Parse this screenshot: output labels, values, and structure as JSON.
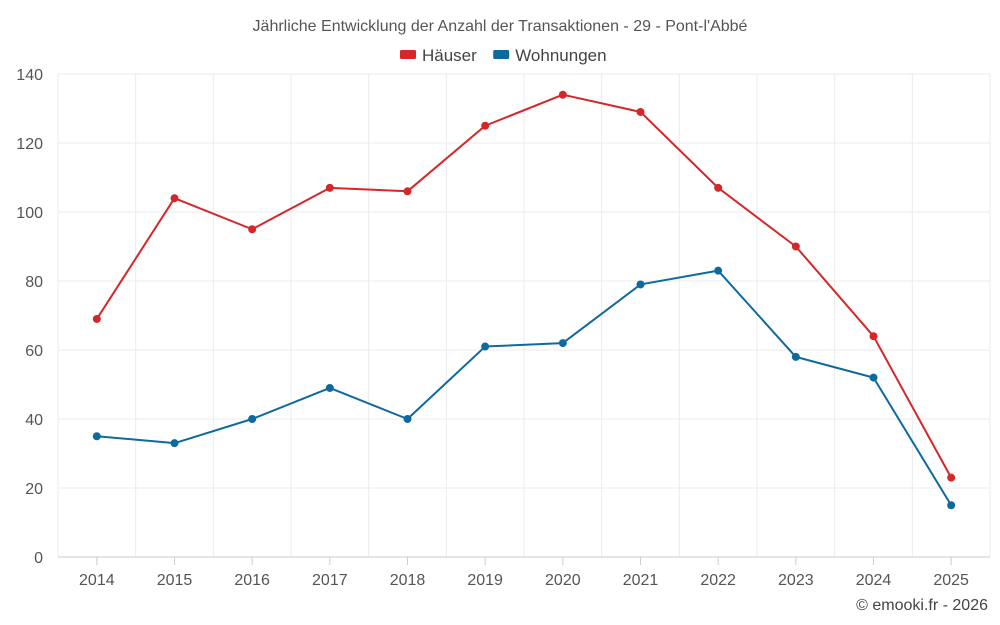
{
  "chart_data": {
    "type": "line",
    "title": "Jährliche Entwicklung der Anzahl der Transaktionen - 29 - Pont-l'Abbé",
    "xlabel": "",
    "ylabel": "",
    "categories": [
      "2014",
      "2015",
      "2016",
      "2017",
      "2018",
      "2019",
      "2020",
      "2021",
      "2022",
      "2023",
      "2024",
      "2025"
    ],
    "ylim": [
      0,
      140
    ],
    "yticks": [
      0,
      20,
      40,
      60,
      80,
      100,
      120,
      140
    ],
    "grid": true,
    "legend_position": "top-center",
    "series": [
      {
        "name": "Häuser",
        "color": "#d62728",
        "values": [
          69,
          104,
          95,
          107,
          106,
          125,
          134,
          129,
          107,
          90,
          64,
          23
        ]
      },
      {
        "name": "Wohnungen",
        "color": "#0e6a9e",
        "values": [
          35,
          33,
          40,
          49,
          40,
          61,
          62,
          79,
          83,
          58,
          52,
          15
        ]
      }
    ],
    "credit": "© emooki.fr - 2026"
  }
}
